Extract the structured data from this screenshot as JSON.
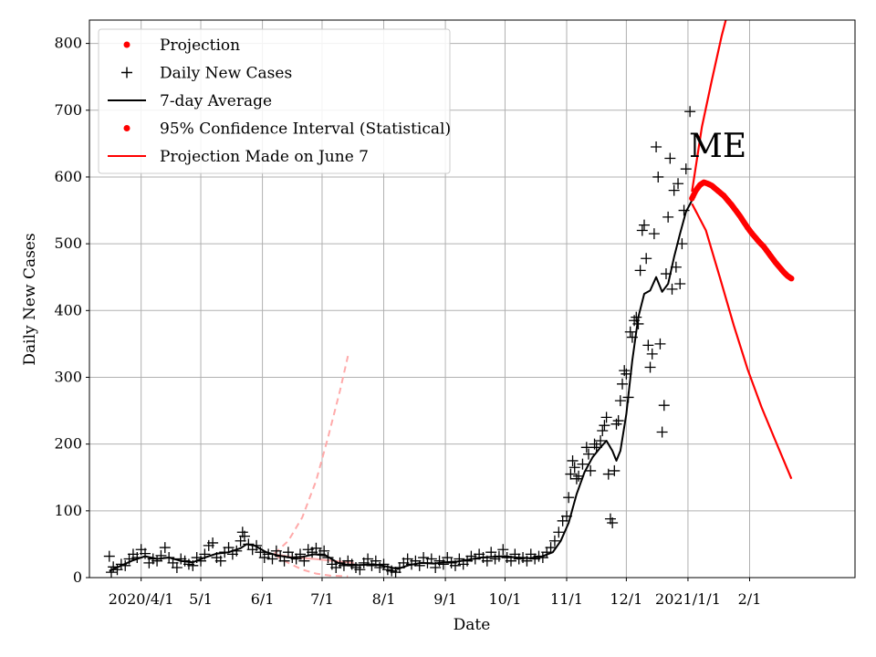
{
  "chart_data": {
    "type": "line",
    "xlabel": "Date",
    "ylabel": "Daily New Cases",
    "annotation": "ME",
    "x_tick_labels": [
      "2020/4/1",
      "5/1",
      "6/1",
      "7/1",
      "8/1",
      "9/1",
      "10/1",
      "11/1",
      "12/1",
      "2021/1/1",
      "2/1"
    ],
    "x_tick_dates": [
      "2020-04-01",
      "2020-05-01",
      "2020-06-01",
      "2020-07-01",
      "2020-08-01",
      "2020-09-01",
      "2020-10-01",
      "2020-11-01",
      "2020-12-01",
      "2021-01-01",
      "2021-02-01"
    ],
    "xlim": [
      "2020-03-06",
      "2021-03-26"
    ],
    "ylim": [
      0,
      835
    ],
    "y_ticks": [
      0,
      100,
      200,
      300,
      400,
      500,
      600,
      700,
      800
    ],
    "grid": true,
    "legend_position": "top-left",
    "legend": [
      {
        "label": "Projection",
        "marker": "dot",
        "color": "#ff0000"
      },
      {
        "label": "Daily New Cases",
        "marker": "plus",
        "color": "#000000"
      },
      {
        "label": "7-day Average",
        "marker": "line",
        "color": "#000000"
      },
      {
        "label": "95% Confidence Interval (Statistical)",
        "marker": "dot",
        "color": "#ff0000"
      },
      {
        "label": "Projection Made on June 7",
        "marker": "line",
        "color": "#ff0000"
      }
    ],
    "daily_new_cases": {
      "name": "Daily New Cases",
      "color": "#000000",
      "points": [
        [
          "2020-03-16",
          32
        ],
        [
          "2020-03-17",
          8
        ],
        [
          "2020-03-18",
          16
        ],
        [
          "2020-03-20",
          12
        ],
        [
          "2020-03-22",
          20
        ],
        [
          "2020-03-24",
          18
        ],
        [
          "2020-03-26",
          28
        ],
        [
          "2020-03-28",
          35
        ],
        [
          "2020-03-30",
          30
        ],
        [
          "2020-04-01",
          42
        ],
        [
          "2020-04-03",
          36
        ],
        [
          "2020-04-05",
          22
        ],
        [
          "2020-04-07",
          28
        ],
        [
          "2020-04-09",
          25
        ],
        [
          "2020-04-11",
          33
        ],
        [
          "2020-04-13",
          45
        ],
        [
          "2020-04-15",
          30
        ],
        [
          "2020-04-17",
          22
        ],
        [
          "2020-04-19",
          15
        ],
        [
          "2020-04-21",
          28
        ],
        [
          "2020-04-23",
          25
        ],
        [
          "2020-04-25",
          20
        ],
        [
          "2020-04-27",
          18
        ],
        [
          "2020-04-29",
          30
        ],
        [
          "2020-05-01",
          25
        ],
        [
          "2020-05-03",
          35
        ],
        [
          "2020-05-05",
          48
        ],
        [
          "2020-05-07",
          52
        ],
        [
          "2020-05-09",
          30
        ],
        [
          "2020-05-11",
          25
        ],
        [
          "2020-05-13",
          38
        ],
        [
          "2020-05-15",
          45
        ],
        [
          "2020-05-17",
          35
        ],
        [
          "2020-05-19",
          40
        ],
        [
          "2020-05-21",
          55
        ],
        [
          "2020-05-22",
          68
        ],
        [
          "2020-05-23",
          62
        ],
        [
          "2020-05-25",
          50
        ],
        [
          "2020-05-27",
          42
        ],
        [
          "2020-05-29",
          48
        ],
        [
          "2020-05-31",
          38
        ],
        [
          "2020-06-02",
          30
        ],
        [
          "2020-06-04",
          35
        ],
        [
          "2020-06-06",
          28
        ],
        [
          "2020-06-08",
          40
        ],
        [
          "2020-06-10",
          32
        ],
        [
          "2020-06-12",
          25
        ],
        [
          "2020-06-14",
          38
        ],
        [
          "2020-06-16",
          30
        ],
        [
          "2020-06-18",
          28
        ],
        [
          "2020-06-20",
          35
        ],
        [
          "2020-06-22",
          25
        ],
        [
          "2020-06-24",
          42
        ],
        [
          "2020-06-26",
          38
        ],
        [
          "2020-06-28",
          44
        ],
        [
          "2020-06-30",
          35
        ],
        [
          "2020-07-02",
          40
        ],
        [
          "2020-07-04",
          30
        ],
        [
          "2020-07-06",
          20
        ],
        [
          "2020-07-08",
          15
        ],
        [
          "2020-07-10",
          22
        ],
        [
          "2020-07-12",
          18
        ],
        [
          "2020-07-14",
          25
        ],
        [
          "2020-07-16",
          20
        ],
        [
          "2020-07-18",
          15
        ],
        [
          "2020-07-20",
          12
        ],
        [
          "2020-07-22",
          22
        ],
        [
          "2020-07-24",
          28
        ],
        [
          "2020-07-26",
          18
        ],
        [
          "2020-07-28",
          25
        ],
        [
          "2020-07-30",
          15
        ],
        [
          "2020-08-01",
          20
        ],
        [
          "2020-08-03",
          12
        ],
        [
          "2020-08-05",
          10
        ],
        [
          "2020-08-07",
          8
        ],
        [
          "2020-08-09",
          15
        ],
        [
          "2020-08-11",
          22
        ],
        [
          "2020-08-13",
          28
        ],
        [
          "2020-08-15",
          20
        ],
        [
          "2020-08-17",
          25
        ],
        [
          "2020-08-19",
          18
        ],
        [
          "2020-08-21",
          30
        ],
        [
          "2020-08-23",
          22
        ],
        [
          "2020-08-25",
          28
        ],
        [
          "2020-08-27",
          15
        ],
        [
          "2020-08-29",
          25
        ],
        [
          "2020-08-31",
          20
        ],
        [
          "2020-09-02",
          30
        ],
        [
          "2020-09-04",
          22
        ],
        [
          "2020-09-06",
          18
        ],
        [
          "2020-09-08",
          28
        ],
        [
          "2020-09-10",
          20
        ],
        [
          "2020-09-12",
          25
        ],
        [
          "2020-09-14",
          32
        ],
        [
          "2020-09-16",
          28
        ],
        [
          "2020-09-18",
          35
        ],
        [
          "2020-09-20",
          30
        ],
        [
          "2020-09-22",
          25
        ],
        [
          "2020-09-24",
          38
        ],
        [
          "2020-09-26",
          28
        ],
        [
          "2020-09-28",
          32
        ],
        [
          "2020-09-30",
          42
        ],
        [
          "2020-10-02",
          30
        ],
        [
          "2020-10-04",
          25
        ],
        [
          "2020-10-06",
          35
        ],
        [
          "2020-10-08",
          28
        ],
        [
          "2020-10-10",
          30
        ],
        [
          "2020-10-12",
          25
        ],
        [
          "2020-10-14",
          35
        ],
        [
          "2020-10-16",
          28
        ],
        [
          "2020-10-18",
          32
        ],
        [
          "2020-10-20",
          30
        ],
        [
          "2020-10-22",
          38
        ],
        [
          "2020-10-24",
          45
        ],
        [
          "2020-10-26",
          55
        ],
        [
          "2020-10-28",
          68
        ],
        [
          "2020-10-30",
          85
        ],
        [
          "2020-11-01",
          92
        ],
        [
          "2020-11-02",
          120
        ],
        [
          "2020-11-03",
          155
        ],
        [
          "2020-11-04",
          175
        ],
        [
          "2020-11-05",
          165
        ],
        [
          "2020-11-06",
          148
        ],
        [
          "2020-11-07",
          152
        ],
        [
          "2020-11-09",
          170
        ],
        [
          "2020-11-11",
          195
        ],
        [
          "2020-11-12",
          185
        ],
        [
          "2020-11-13",
          160
        ],
        [
          "2020-11-15",
          200
        ],
        [
          "2020-11-16",
          195
        ],
        [
          "2020-11-18",
          205
        ],
        [
          "2020-11-19",
          220
        ],
        [
          "2020-11-20",
          228
        ],
        [
          "2020-11-21",
          240
        ],
        [
          "2020-11-22",
          155
        ],
        [
          "2020-11-23",
          88
        ],
        [
          "2020-11-24",
          82
        ],
        [
          "2020-11-25",
          160
        ],
        [
          "2020-11-26",
          230
        ],
        [
          "2020-11-27",
          235
        ],
        [
          "2020-11-28",
          265
        ],
        [
          "2020-11-29",
          290
        ],
        [
          "2020-11-30",
          310
        ],
        [
          "2020-12-01",
          305
        ],
        [
          "2020-12-02",
          270
        ],
        [
          "2020-12-03",
          368
        ],
        [
          "2020-12-04",
          360
        ],
        [
          "2020-12-05",
          385
        ],
        [
          "2020-12-06",
          390
        ],
        [
          "2020-12-07",
          380
        ],
        [
          "2020-12-08",
          460
        ],
        [
          "2020-12-09",
          520
        ],
        [
          "2020-12-10",
          528
        ],
        [
          "2020-12-11",
          478
        ],
        [
          "2020-12-12",
          348
        ],
        [
          "2020-12-13",
          315
        ],
        [
          "2020-12-14",
          335
        ],
        [
          "2020-12-15",
          515
        ],
        [
          "2020-12-16",
          645
        ],
        [
          "2020-12-17",
          600
        ],
        [
          "2020-12-18",
          350
        ],
        [
          "2020-12-19",
          218
        ],
        [
          "2020-12-20",
          258
        ],
        [
          "2020-12-21",
          455
        ],
        [
          "2020-12-22",
          540
        ],
        [
          "2020-12-23",
          628
        ],
        [
          "2020-12-24",
          432
        ],
        [
          "2020-12-25",
          580
        ],
        [
          "2020-12-26",
          465
        ],
        [
          "2020-12-27",
          590
        ],
        [
          "2020-12-28",
          440
        ],
        [
          "2020-12-29",
          500
        ],
        [
          "2020-12-30",
          550
        ],
        [
          "2020-12-31",
          612
        ],
        [
          "2021-01-02",
          698
        ]
      ]
    },
    "seven_day_average": {
      "name": "7-day Average",
      "color": "#000000",
      "points": [
        [
          "2020-03-16",
          10
        ],
        [
          "2020-03-22",
          18
        ],
        [
          "2020-03-28",
          26
        ],
        [
          "2020-04-03",
          32
        ],
        [
          "2020-04-09",
          28
        ],
        [
          "2020-04-15",
          30
        ],
        [
          "2020-04-21",
          25
        ],
        [
          "2020-04-27",
          23
        ],
        [
          "2020-05-03",
          30
        ],
        [
          "2020-05-09",
          36
        ],
        [
          "2020-05-15",
          38
        ],
        [
          "2020-05-21",
          44
        ],
        [
          "2020-05-24",
          50
        ],
        [
          "2020-05-28",
          48
        ],
        [
          "2020-06-03",
          38
        ],
        [
          "2020-06-09",
          33
        ],
        [
          "2020-06-15",
          30
        ],
        [
          "2020-06-21",
          31
        ],
        [
          "2020-06-27",
          35
        ],
        [
          "2020-07-03",
          33
        ],
        [
          "2020-07-09",
          22
        ],
        [
          "2020-07-15",
          18
        ],
        [
          "2020-07-21",
          19
        ],
        [
          "2020-07-27",
          20
        ],
        [
          "2020-08-02",
          17
        ],
        [
          "2020-08-08",
          13
        ],
        [
          "2020-08-14",
          19
        ],
        [
          "2020-08-20",
          22
        ],
        [
          "2020-08-26",
          21
        ],
        [
          "2020-09-01",
          23
        ],
        [
          "2020-09-07",
          24
        ],
        [
          "2020-09-13",
          27
        ],
        [
          "2020-09-19",
          30
        ],
        [
          "2020-09-25",
          31
        ],
        [
          "2020-10-01",
          32
        ],
        [
          "2020-10-07",
          30
        ],
        [
          "2020-10-13",
          29
        ],
        [
          "2020-10-19",
          31
        ],
        [
          "2020-10-25",
          38
        ],
        [
          "2020-10-29",
          55
        ],
        [
          "2020-11-02",
          82
        ],
        [
          "2020-11-06",
          125
        ],
        [
          "2020-11-10",
          158
        ],
        [
          "2020-11-14",
          180
        ],
        [
          "2020-11-18",
          195
        ],
        [
          "2020-11-21",
          205
        ],
        [
          "2020-11-24",
          190
        ],
        [
          "2020-11-26",
          175
        ],
        [
          "2020-11-28",
          190
        ],
        [
          "2020-12-01",
          245
        ],
        [
          "2020-12-04",
          325
        ],
        [
          "2020-12-07",
          390
        ],
        [
          "2020-12-10",
          425
        ],
        [
          "2020-12-13",
          430
        ],
        [
          "2020-12-16",
          450
        ],
        [
          "2020-12-19",
          428
        ],
        [
          "2020-12-22",
          440
        ],
        [
          "2020-12-25",
          480
        ],
        [
          "2020-12-28",
          515
        ],
        [
          "2020-12-31",
          548
        ],
        [
          "2021-01-03",
          565
        ]
      ]
    },
    "projection": {
      "name": "Projection",
      "color": "#ff0000",
      "points": [
        [
          "2021-01-03",
          568
        ],
        [
          "2021-01-05",
          580
        ],
        [
          "2021-01-07",
          588
        ],
        [
          "2021-01-09",
          592
        ],
        [
          "2021-01-11",
          590
        ],
        [
          "2021-01-13",
          587
        ],
        [
          "2021-01-15",
          582
        ],
        [
          "2021-01-17",
          577
        ],
        [
          "2021-01-19",
          572
        ],
        [
          "2021-01-21",
          565
        ],
        [
          "2021-01-23",
          558
        ],
        [
          "2021-01-25",
          550
        ],
        [
          "2021-01-27",
          542
        ],
        [
          "2021-01-29",
          533
        ],
        [
          "2021-01-31",
          524
        ],
        [
          "2021-02-02",
          516
        ],
        [
          "2021-02-04",
          509
        ],
        [
          "2021-02-06",
          502
        ],
        [
          "2021-02-08",
          496
        ],
        [
          "2021-02-10",
          488
        ],
        [
          "2021-02-12",
          480
        ],
        [
          "2021-02-14",
          472
        ],
        [
          "2021-02-16",
          465
        ],
        [
          "2021-02-18",
          458
        ],
        [
          "2021-02-20",
          452
        ],
        [
          "2021-02-22",
          448
        ]
      ]
    },
    "confidence_interval": {
      "name": "95% Confidence Interval (Statistical)",
      "color": "#ff0000",
      "upper": [
        [
          "2021-01-03",
          578
        ],
        [
          "2021-01-08",
          675
        ],
        [
          "2021-01-13",
          745
        ],
        [
          "2021-01-18",
          812
        ],
        [
          "2021-01-20",
          835
        ]
      ],
      "lower": [
        [
          "2021-01-03",
          560
        ],
        [
          "2021-01-10",
          520
        ],
        [
          "2021-01-17",
          450
        ],
        [
          "2021-01-24",
          378
        ],
        [
          "2021-01-31",
          312
        ],
        [
          "2021-02-07",
          255
        ],
        [
          "2021-02-14",
          205
        ],
        [
          "2021-02-22",
          148
        ]
      ]
    },
    "june7_projection": {
      "name": "Projection Made on June 7",
      "color": "#ffaaaa",
      "mid": [
        [
          "2020-06-07",
          35
        ],
        [
          "2020-06-17",
          30
        ],
        [
          "2020-06-27",
          28
        ],
        [
          "2020-07-07",
          25
        ],
        [
          "2020-07-17",
          22
        ]
      ],
      "upper": [
        [
          "2020-06-07",
          36
        ],
        [
          "2020-06-14",
          55
        ],
        [
          "2020-06-21",
          90
        ],
        [
          "2020-06-28",
          145
        ],
        [
          "2020-07-04",
          210
        ],
        [
          "2020-07-10",
          280
        ],
        [
          "2020-07-14",
          332
        ]
      ],
      "lower": [
        [
          "2020-06-07",
          34
        ],
        [
          "2020-06-14",
          22
        ],
        [
          "2020-06-21",
          12
        ],
        [
          "2020-06-28",
          6
        ],
        [
          "2020-07-05",
          3
        ],
        [
          "2020-07-14",
          2
        ]
      ]
    }
  }
}
